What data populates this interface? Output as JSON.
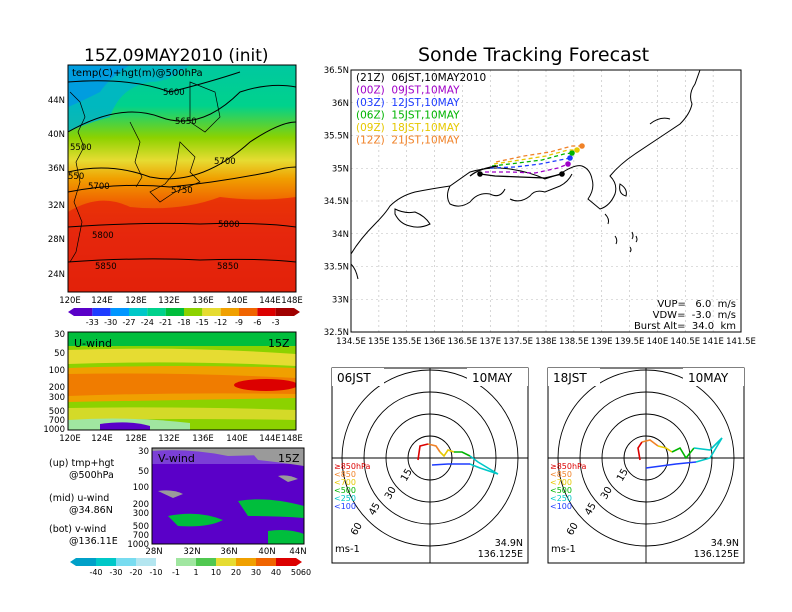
{
  "left_title": "15Z,09MAY2010 (init)",
  "right_title": "Sonde Tracking Forecast",
  "upper_map": {
    "label": "temp(C)+hgt(m)@500hPa",
    "lat_labels": [
      "44N",
      "40N",
      "36N",
      "32N",
      "28N",
      "24N"
    ],
    "lon_labels": [
      "120E",
      "124E",
      "128E",
      "132E",
      "136E",
      "140E",
      "144E",
      "148E"
    ],
    "contour_labels": [
      "5600",
      "5650",
      "5700",
      "5750",
      "5800",
      "5850",
      "5500",
      "550",
      "5700",
      "5800",
      "5850"
    ]
  },
  "temp_colorbar": {
    "labels": [
      "-33",
      "-30",
      "-27",
      "-24",
      "-21",
      "-18",
      "-15",
      "-12",
      "-9",
      "-6",
      "-3"
    ]
  },
  "uwind": {
    "label": "U-wind",
    "time": "15Z",
    "y_labels": [
      "30",
      "50",
      "100",
      "200",
      "300",
      "500",
      "700",
      "1000"
    ],
    "x_labels": [
      "120E",
      "124E",
      "128E",
      "132E",
      "136E",
      "140E",
      "144E",
      "148E"
    ]
  },
  "vwind": {
    "label": "V-wind",
    "time": "15Z",
    "y_labels": [
      "30",
      "50",
      "100",
      "200",
      "300",
      "500",
      "700",
      "1000"
    ],
    "x_labels": [
      "28N",
      "32N",
      "36N",
      "40N",
      "44N"
    ]
  },
  "wind_colorbar": {
    "labels": [
      "-40",
      "-30",
      "-20",
      "-10",
      "-1",
      "1",
      "10",
      "20",
      "30",
      "40",
      "50",
      "60"
    ]
  },
  "notes": [
    {
      "a": "(up) tmp+hgt",
      "b": "@500hPa"
    },
    {
      "a": "(mid) u-wind",
      "b": "@34.86N"
    },
    {
      "a": "(bot) v-wind",
      "b": "@136.11E"
    }
  ],
  "track_map": {
    "lat_labels": [
      "36.5N",
      "36N",
      "35.5N",
      "35N",
      "34.5N",
      "34N",
      "33.5N",
      "33N",
      "32.5N"
    ],
    "lon_labels": [
      "134.5E",
      "135E",
      "135.5E",
      "136E",
      "136.5E",
      "137E",
      "137.5E",
      "138E",
      "138.5E",
      "139E",
      "139.5E",
      "140E",
      "140.5E",
      "141E",
      "141.5E"
    ],
    "legend": [
      {
        "label": "(21Z)  06JST,10MAY2010",
        "color": "#000000"
      },
      {
        "label": "(00Z)  09JST,10MAY",
        "color": "#a000c8"
      },
      {
        "label": "(03Z)  12JST,10MAY",
        "color": "#1e3cff"
      },
      {
        "label": "(06Z)  15JST,10MAY",
        "color": "#00b400"
      },
      {
        "label": "(09Z)  18JST,10MAY",
        "color": "#e6c800"
      },
      {
        "label": "(12Z)  21JST,10MAY",
        "color": "#f08228"
      }
    ],
    "vup": "VUP=   6.0  m/s",
    "vdw": "VDW=  -3.0  m/s",
    "burst": "Burst Alt=  34.0  km"
  },
  "hodo_left": {
    "time": "06JST",
    "date": "10MAY",
    "units": "ms-1",
    "lat": "34.9N",
    "lon": "136.125E",
    "ring_labels": [
      "15",
      "30",
      "45",
      "60"
    ]
  },
  "hodo_right": {
    "time": "18JST",
    "date": "10MAY",
    "units": "ms-1",
    "lat": "34.9N",
    "lon": "136.125E",
    "ring_labels": [
      "15",
      "30",
      "45",
      "60"
    ]
  },
  "hodo_legend": [
    {
      "label": "≥850hPa",
      "color": "#dc0000"
    },
    {
      "label": "<850",
      "color": "#f08228"
    },
    {
      "label": "<700",
      "color": "#e6c800"
    },
    {
      "label": "<500",
      "color": "#00b400"
    },
    {
      "label": "<250",
      "color": "#00c8c8"
    },
    {
      "label": "<100",
      "color": "#1e3cff"
    }
  ],
  "colors": {
    "temp_scale": [
      "#5a00c8",
      "#1e3cff",
      "#0096ff",
      "#00c8c8",
      "#00d28c",
      "#00be3c",
      "#8cd200",
      "#e6dc32",
      "#f0a000",
      "#f06400",
      "#dc0000",
      "#a00000"
    ],
    "wind_scale": [
      "#00a0c8",
      "#00c8c8",
      "#78dcf0",
      "#b4e6f0",
      "#ffffff",
      "#a0e6a0",
      "#50c850",
      "#e6dc32",
      "#f0a000",
      "#f06400",
      "#dc0000"
    ]
  }
}
